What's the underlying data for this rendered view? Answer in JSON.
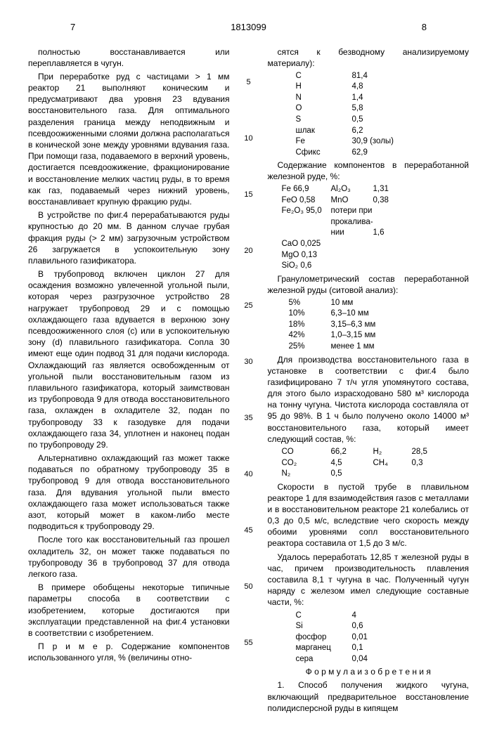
{
  "header": {
    "page_left": "7",
    "patent_no": "1813099",
    "page_right": "8"
  },
  "line_numbers": [
    "5",
    "10",
    "15",
    "20",
    "25",
    "30",
    "35",
    "40",
    "45",
    "50",
    "55"
  ],
  "left": {
    "p1": "полностью восстанавливается или переплавляется в чугун.",
    "p2": "При переработке руд с частицами > 1 мм реактор 21 выполняют коническим и предусматривают два уровня 23 вдувания восстановительного газа. Для оптимального разделения граница между неподвижным и псевдоожиженными слоями должна располагаться в конической зоне между уровнями вдувания газа. При помощи газа, подаваемого в верхний уровень, достигается псевдоожижение, фракционирование и восстановление мелких частиц руды, в то время как газ, подаваемый через нижний уровень, восстанавливает крупную фракцию руды.",
    "p3": "В устройстве по фиг.4 перерабатываются руды крупностью до 20 мм. В данном случае грубая фракция руды (> 2 мм) загрузочным устройством 26 загружается в успокоительную зону плавильного газификатора.",
    "p4": "В трубопровод включен циклон 27 для осаждения возможно увлеченной угольной пыли, которая через разгрузочное устройство 28 нагружает трубопровод 29 и с помощью охлаждающего газа вдувается в верхнюю зону псевдоожиженного слоя (с) или в успокоительную зону (d) плавильного газификатора. Сопла 30 имеют еще один подвод 31 для подачи кислорода. Охлаждающий газ является освобожденным от угольной пыли восстановительным газом из плавильного газификатора, который заимствован из трубопровода 9 для отвода восстановительного газа, охлажден в охладителе 32, подан по трубопроводу 33 к газодувке для подачи охлаждающего газа 34, уплотнен и наконец подан по трубопроводу 29.",
    "p5": "Альтернативно охлаждающий газ может также подаваться по обратному трубопроводу 35 в трубопровод 9 для отвода восстановительного газа. Для вдувания угольной пыли вместо охлаждающего газа может использоваться также азот, который может в каком-либо месте подводиться к трубопроводу 29.",
    "p6": "После того как восстановительный газ прошел охладитель 32, он может также подаваться по трубопроводу 36 в трубопровод 37 для отвода легкого газа.",
    "p7": "В примере обобщены некоторые типичные параметры способа в соответствии с изобретением, которые достигаются при эксплуатации представленной на фиг.4 установки в соответствии с изобретением.",
    "p8": "П р и м е р. Содержание компонентов использованного угля, % (величины отно-"
  },
  "right": {
    "p1": "сятся к безводному анализируемому материалу):",
    "t1": [
      [
        "C",
        "81,4"
      ],
      [
        "H",
        "4,8"
      ],
      [
        "N",
        "1,4"
      ],
      [
        "O",
        "5,8"
      ],
      [
        "S",
        "0,5"
      ],
      [
        "шлак",
        "6,2"
      ],
      [
        "Fe",
        "30,9 (золы)"
      ],
      [
        "Cфикс",
        "62,9"
      ]
    ],
    "p2": "Содержание компонентов в переработанной железной руде, %:",
    "t2": [
      [
        "Fe 66,9",
        "Al₂O₃",
        "1,31"
      ],
      [
        "FeO 0,58",
        "MnO",
        "0,38"
      ],
      [
        "Fe₂O₃ 95,0",
        "потери при",
        ""
      ],
      [
        "",
        "прокалива-",
        ""
      ],
      [
        "",
        "нии",
        "1,6"
      ],
      [
        "CaO 0,025",
        "",
        ""
      ],
      [
        "MgO 0,13",
        "",
        ""
      ],
      [
        "SiO₂ 0,6",
        "",
        ""
      ]
    ],
    "p3": "Гранулометрический состав переработанной железной руды (ситовой анализ):",
    "t3": [
      [
        "5%",
        "10 мм"
      ],
      [
        "10%",
        "6,3–10 мм"
      ],
      [
        "18%",
        "3,15–6,3 мм"
      ],
      [
        "42%",
        "1,0–3,15 мм"
      ],
      [
        "25%",
        "менее 1 мм"
      ]
    ],
    "p4": "Для производства восстановительного газа в установке в соответствии с фиг.4 было газифицировано 7 т/ч угля упомянутого состава, для этого было израсходовано 580 м³ кислорода на тонну чугуна. Чистота кислорода составляла от 95 до 98%. В 1 ч было получено около 14000 м³ восстановительного газа, который имеет следующий состав, %:",
    "t4": [
      [
        "CO",
        "66,2",
        "H₂",
        "28,5"
      ],
      [
        "CO₂",
        "4,5",
        "CH₄",
        "0,3"
      ],
      [
        "N₂",
        "0,5",
        "",
        ""
      ]
    ],
    "p5": "Скорости в пустой трубе в плавильном реакторе 1 для взаимодействия газов с металлами и в восстановительном реакторе 21 колебались от 0,3 до 0,5 м/с, вследствие чего скорость между обоими уровнями сопл восстановительного реактора составила от 1,5 до 3 м/с.",
    "p6": "Удалось переработать 12,85 т железной руды в час, причем производительность плавления составила 8,1 т чугуна в час. Полученный чугун наряду с железом имел следующие составные части, %:",
    "t5": [
      [
        "C",
        "4"
      ],
      [
        "Si",
        "0,6"
      ],
      [
        "фосфор",
        "0,01"
      ],
      [
        "марганец",
        "0,1"
      ],
      [
        "сера",
        "0,04"
      ]
    ],
    "formula": "Ф о р м у л а  и з о б р е т е н и я",
    "p7": "1. Способ получения жидкого чугуна, включающий предварительное восстановление полидисперсной руды в кипящем"
  }
}
